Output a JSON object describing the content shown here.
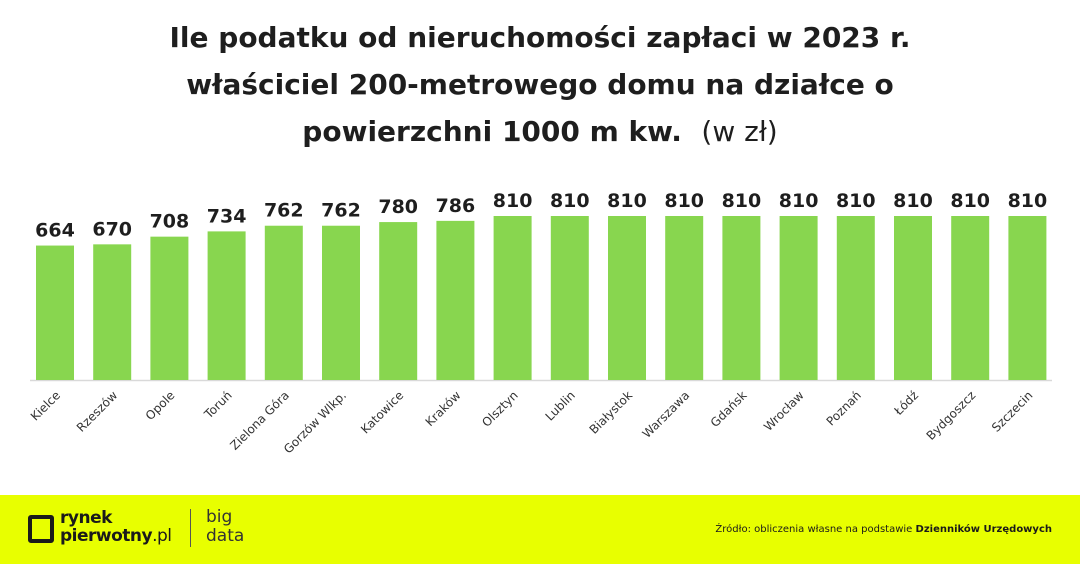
{
  "chart_data": {
    "type": "bar",
    "title_lines": [
      "Ile podatku od nieruchomości zapłaci w 2023 r.",
      "właściciel 200-metrowego domu na działce o",
      "powierzchni 1000 m kw."
    ],
    "title_unit": "(w zł)",
    "categories": [
      "Kielce",
      "Rzeszów",
      "Opole",
      "Toruń",
      "Zielona Góra",
      "Gorzów Wlkp.",
      "Katowice",
      "Kraków",
      "Olsztyn",
      "Lublin",
      "Białystok",
      "Warszawa",
      "Gdańsk",
      "Wrocław",
      "Poznań",
      "Łódź",
      "Bydgoszcz",
      "Szczecin"
    ],
    "values": [
      664,
      670,
      708,
      734,
      762,
      762,
      780,
      786,
      810,
      810,
      810,
      810,
      810,
      810,
      810,
      810,
      810,
      810
    ],
    "ylim": [
      0,
      810
    ],
    "bar_color": "#88d64f",
    "data_labels": true,
    "grid": false
  },
  "footer": {
    "background": "#e8ff00",
    "logo_line1": "rynek",
    "logo_line2": "pierwotny",
    "logo_suffix": ".pl",
    "big": "big",
    "data": "data",
    "source_prefix": "Źródło: obliczenia własne na podstawie",
    "source_bold": "Dzienników Urzędowych"
  }
}
